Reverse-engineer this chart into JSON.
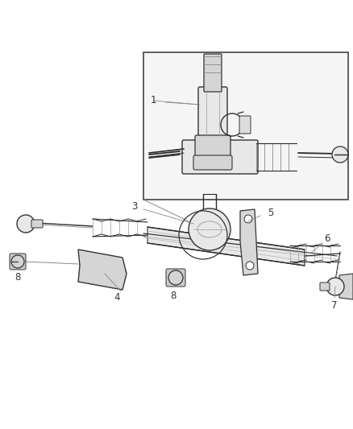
{
  "background_color": "#ffffff",
  "fig_width": 4.39,
  "fig_height": 5.33,
  "dpi": 100,
  "line_color": "#2a2a2a",
  "leader_color": "#888888",
  "label_color": "#333333",
  "part_fill": "#e8e8e8",
  "part_edge": "#333333"
}
